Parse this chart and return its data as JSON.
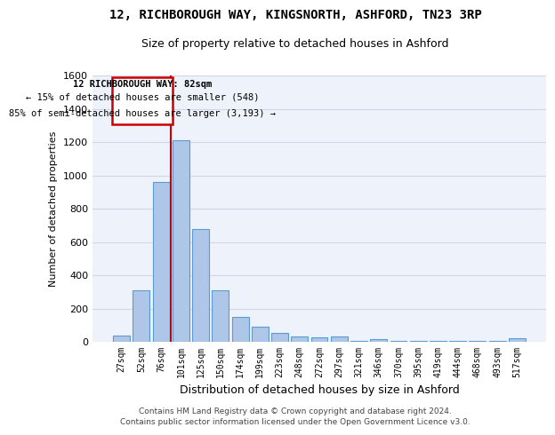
{
  "title": "12, RICHBOROUGH WAY, KINGSNORTH, ASHFORD, TN23 3RP",
  "subtitle": "Size of property relative to detached houses in Ashford",
  "xlabel": "Distribution of detached houses by size in Ashford",
  "ylabel": "Number of detached properties",
  "categories": [
    "27sqm",
    "52sqm",
    "76sqm",
    "101sqm",
    "125sqm",
    "150sqm",
    "174sqm",
    "199sqm",
    "223sqm",
    "248sqm",
    "272sqm",
    "297sqm",
    "321sqm",
    "346sqm",
    "370sqm",
    "395sqm",
    "419sqm",
    "444sqm",
    "468sqm",
    "493sqm",
    "517sqm"
  ],
  "values": [
    40,
    310,
    960,
    1210,
    680,
    310,
    150,
    90,
    55,
    30,
    25,
    30,
    5,
    15,
    5,
    5,
    5,
    5,
    5,
    5,
    20
  ],
  "bar_color": "#aec6e8",
  "bar_edge_color": "#5a9bd4",
  "annotation_label": "12 RICHBOROUGH WAY: 82sqm",
  "annotation_line1": "← 15% of detached houses are smaller (548)",
  "annotation_line2": "85% of semi-detached houses are larger (3,193) →",
  "annotation_box_color": "#ffffff",
  "annotation_box_edge": "#cc0000",
  "vline_color": "#cc0000",
  "ylim": [
    0,
    1600
  ],
  "yticks": [
    0,
    200,
    400,
    600,
    800,
    1000,
    1200,
    1400,
    1600
  ],
  "grid_color": "#d0d8e8",
  "background_color": "#eef2fa",
  "footer_line1": "Contains HM Land Registry data © Crown copyright and database right 2024.",
  "footer_line2": "Contains public sector information licensed under the Open Government Licence v3.0."
}
